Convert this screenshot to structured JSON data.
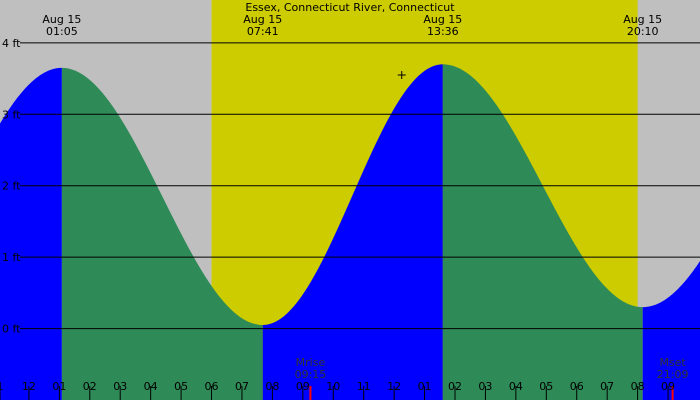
{
  "chart_data": {
    "type": "area",
    "title": "Essex, Connecticut River, Connecticut",
    "y_unit": "ft",
    "ylim": [
      -1.0,
      4.6
    ],
    "y_ticks": [
      {
        "value": 4,
        "label": "4 ft"
      },
      {
        "value": 3,
        "label": "3 ft"
      },
      {
        "value": 2,
        "label": "2 ft"
      },
      {
        "value": 1,
        "label": "1 ft"
      },
      {
        "value": 0,
        "label": "0 ft"
      }
    ],
    "x_range_hours": [
      -0.95,
      22.05
    ],
    "hour_ticks": [
      {
        "t": -0.95,
        "label": "1"
      },
      {
        "t": 0.0,
        "label": "12"
      },
      {
        "t": 1.0,
        "label": "01"
      },
      {
        "t": 2.0,
        "label": "02"
      },
      {
        "t": 3.0,
        "label": "03"
      },
      {
        "t": 4.0,
        "label": "04"
      },
      {
        "t": 5.0,
        "label": "05"
      },
      {
        "t": 6.0,
        "label": "06"
      },
      {
        "t": 7.0,
        "label": "07"
      },
      {
        "t": 8.0,
        "label": "08"
      },
      {
        "t": 9.0,
        "label": "09"
      },
      {
        "t": 10.0,
        "label": "10"
      },
      {
        "t": 11.0,
        "label": "11"
      },
      {
        "t": 12.0,
        "label": "12"
      },
      {
        "t": 13.0,
        "label": "01"
      },
      {
        "t": 14.0,
        "label": "02"
      },
      {
        "t": 15.0,
        "label": "03"
      },
      {
        "t": 16.0,
        "label": "04"
      },
      {
        "t": 17.0,
        "label": "05"
      },
      {
        "t": 18.0,
        "label": "06"
      },
      {
        "t": 19.0,
        "label": "07"
      },
      {
        "t": 20.0,
        "label": "08"
      },
      {
        "t": 21.0,
        "label": "09"
      }
    ],
    "daylight": {
      "start": 6.0,
      "end": 20.0
    },
    "tide_extremes": [
      {
        "type": "high",
        "time": 1.083,
        "height": 3.65,
        "date": "Aug 15",
        "time_label": "01:05"
      },
      {
        "type": "low",
        "time": 7.683,
        "height": 0.05,
        "date": "Aug 15",
        "time_label": "07:41"
      },
      {
        "type": "high",
        "time": 13.6,
        "height": 3.7,
        "date": "Aug 15",
        "time_label": "13:36"
      },
      {
        "type": "low",
        "time": 20.167,
        "height": 0.3,
        "date": "Aug 15",
        "time_label": "20:10"
      }
    ],
    "moon_events": [
      {
        "label": "Mrise",
        "time_label": "09:15",
        "time": 9.25
      },
      {
        "label": "Mset",
        "time_label": "21:09",
        "time": 21.15
      }
    ],
    "marker": {
      "time": 12.25,
      "height": 3.55
    },
    "colors": {
      "night": "#bfbfbf",
      "day": "#cccc00",
      "rising": "#0000ff",
      "falling": "#2e8b57",
      "grid": "#000000",
      "moon_tick": "#ff0000"
    }
  }
}
